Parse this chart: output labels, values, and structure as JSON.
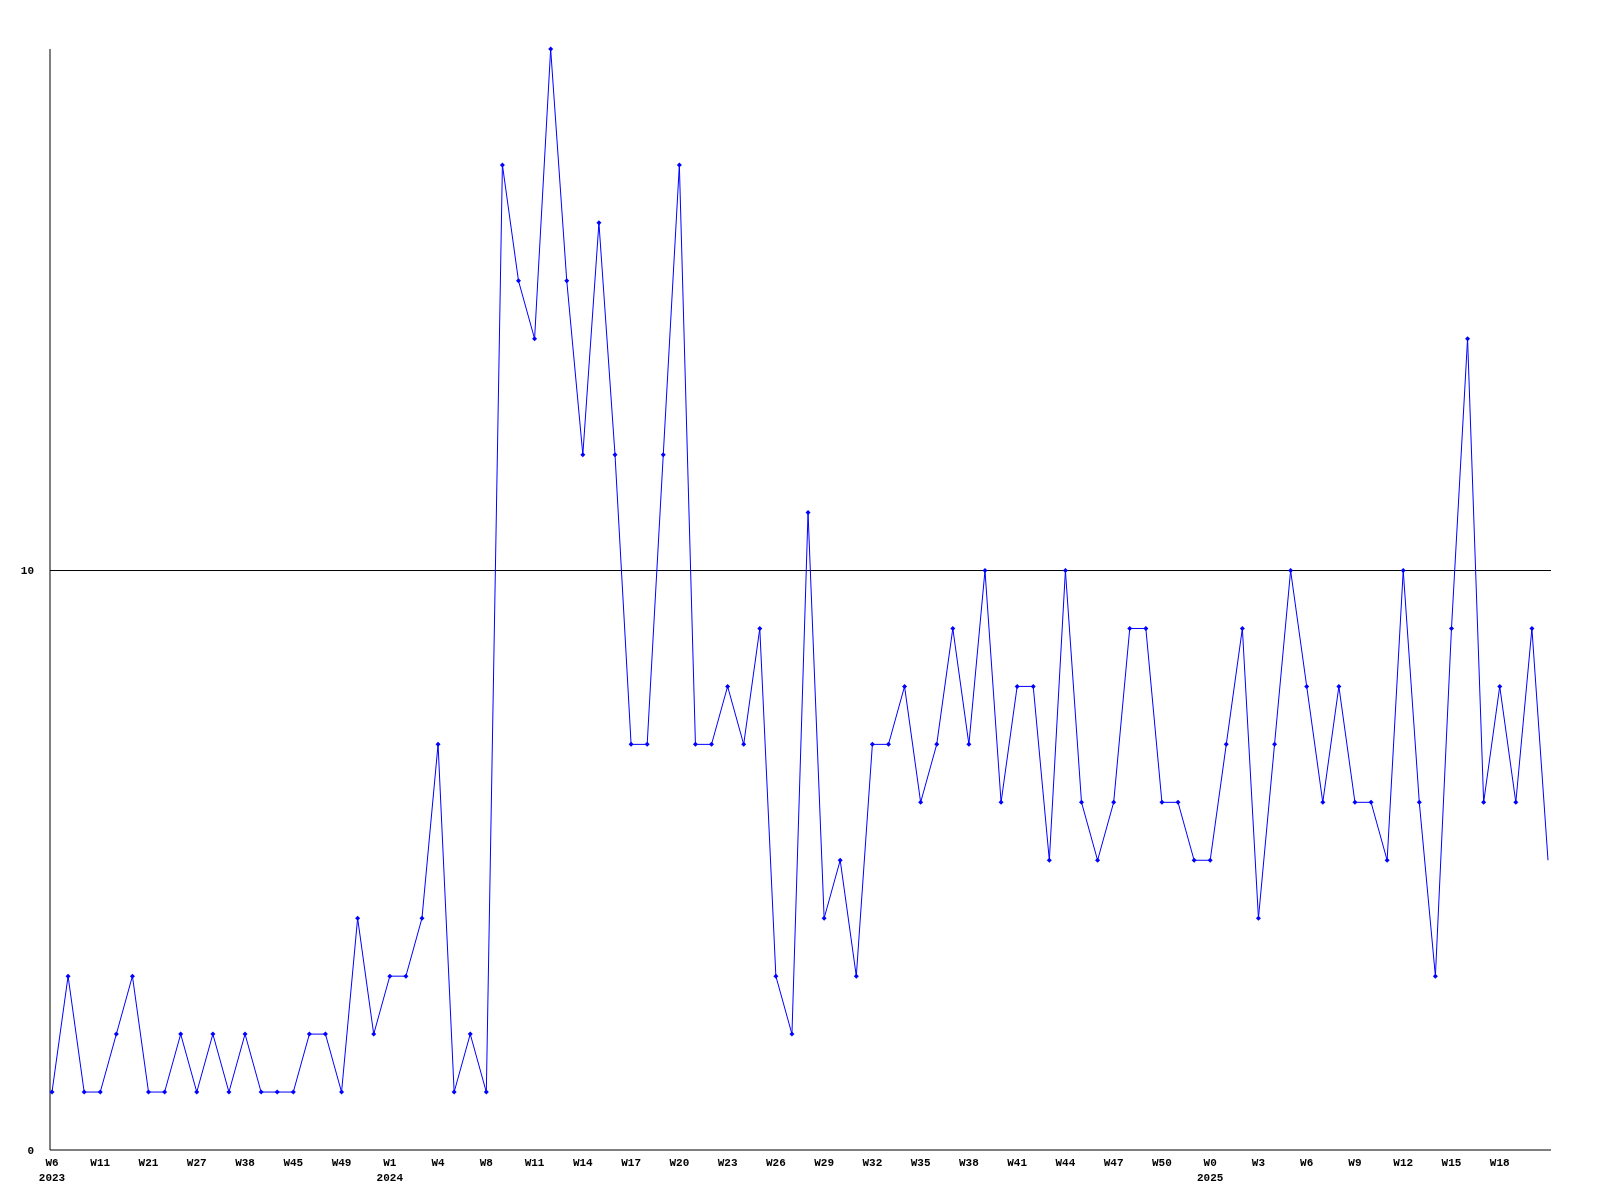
{
  "chart_data": {
    "type": "line",
    "categories": [
      "W6\n2023",
      null,
      null,
      "W11",
      null,
      null,
      "W21",
      null,
      null,
      "W27",
      null,
      null,
      "W38",
      null,
      null,
      "W45",
      null,
      null,
      "W49",
      null,
      null,
      "W1\n2024",
      null,
      null,
      "W4",
      null,
      null,
      "W8",
      null,
      null,
      "W11",
      null,
      null,
      "W14",
      null,
      null,
      "W17",
      null,
      null,
      "W20",
      null,
      null,
      "W23",
      null,
      null,
      "W26",
      null,
      null,
      "W29",
      null,
      null,
      "W32",
      null,
      null,
      "W35",
      null,
      null,
      "W38",
      null,
      null,
      "W41",
      null,
      null,
      "W44",
      null,
      null,
      "W47",
      null,
      null,
      "W50",
      null,
      null,
      "W0\n2025",
      null,
      null,
      "W3",
      null,
      null,
      "W6",
      null,
      null,
      "W9",
      null,
      null,
      "W12",
      null,
      null,
      "W15",
      null,
      null,
      "W18",
      null,
      null,
      null
    ],
    "series": [
      {
        "color": "#0000ff",
        "values": [
          1,
          3,
          1,
          1,
          2,
          3,
          1,
          1,
          2,
          1,
          2,
          1,
          2,
          1,
          1,
          1,
          2,
          2,
          1,
          4,
          2,
          3,
          3,
          4,
          7,
          1,
          2,
          1,
          17,
          15,
          14,
          19,
          15,
          12,
          16,
          12,
          7,
          7,
          12,
          17,
          7,
          7,
          8,
          7,
          9,
          3,
          2,
          11,
          4,
          5,
          3,
          7,
          7,
          8,
          6,
          7,
          9,
          7,
          10,
          6,
          8,
          8,
          5,
          10,
          6,
          5,
          6,
          9,
          9,
          6,
          6,
          5,
          5,
          7,
          9,
          4,
          7,
          10,
          8,
          6,
          8,
          6,
          6,
          5,
          10,
          6,
          3,
          9,
          14,
          6,
          8,
          6,
          9,
          5
        ]
      }
    ],
    "ylim": [
      0,
      19
    ],
    "yticks": [
      0,
      10
    ],
    "grid": "y",
    "marker": "diamond",
    "line_style": "solid"
  }
}
